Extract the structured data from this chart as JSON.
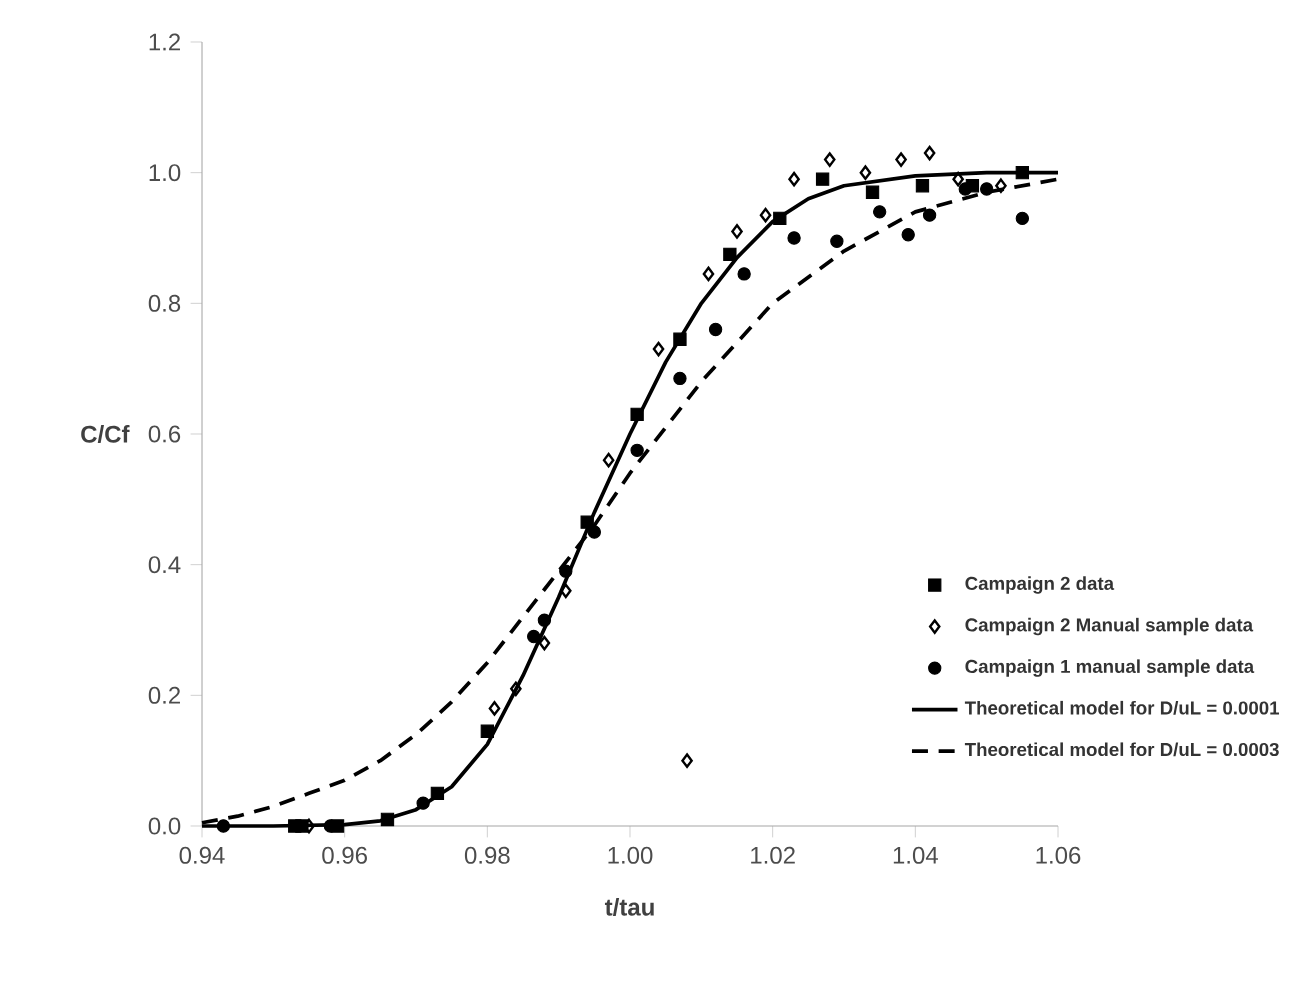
{
  "chart_data": {
    "type": "scatter",
    "xlabel": "t/tau",
    "ylabel": "C/Cf",
    "xlim": [
      0.94,
      1.06
    ],
    "ylim": [
      0,
      1.2
    ],
    "xticks": [
      {
        "value": 0.94,
        "label": "0.94"
      },
      {
        "value": 0.96,
        "label": "0.96"
      },
      {
        "value": 0.98,
        "label": "0.98"
      },
      {
        "value": 1.0,
        "label": "1.00"
      },
      {
        "value": 1.02,
        "label": "1.02"
      },
      {
        "value": 1.04,
        "label": "1.04"
      },
      {
        "value": 1.06,
        "label": "1.06"
      }
    ],
    "yticks": [
      {
        "value": 0,
        "label": "0.0"
      },
      {
        "value": 0.2,
        "label": "0.2"
      },
      {
        "value": 0.4,
        "label": "0.4"
      },
      {
        "value": 0.6,
        "label": "0.6"
      },
      {
        "value": 0.8,
        "label": "0.8"
      },
      {
        "value": 1.0,
        "label": "1.0"
      },
      {
        "value": 1.2,
        "label": "1.2"
      }
    ],
    "grid": false,
    "legend": "right",
    "series": [
      {
        "name": "Campaign 2 data",
        "marker": "square",
        "color": "#000000",
        "x": [
          0.953,
          0.954,
          0.959,
          0.966,
          0.973,
          0.98,
          0.994,
          1.001,
          1.007,
          1.014,
          1.021,
          1.027,
          1.034,
          1.041,
          1.048,
          1.055
        ],
        "values": [
          0,
          0,
          0,
          0.01,
          0.05,
          0.145,
          0.465,
          0.63,
          0.745,
          0.875,
          0.93,
          0.99,
          0.97,
          0.98,
          0.98,
          1.0
        ]
      },
      {
        "name": "Campaign 2 Manual sample data",
        "marker": "diamond",
        "color": "#000000",
        "x": [
          0.955,
          0.981,
          0.984,
          0.988,
          0.991,
          0.997,
          1.004,
          1.008,
          1.011,
          1.015,
          1.019,
          1.023,
          1.028,
          1.033,
          1.038,
          1.042,
          1.046,
          1.052
        ],
        "values": [
          0,
          0.18,
          0.21,
          0.28,
          0.36,
          0.56,
          0.73,
          0.1,
          0.845,
          0.91,
          0.935,
          0.99,
          1.02,
          1.0,
          1.02,
          1.03,
          0.99,
          0.98
        ]
      },
      {
        "name": "Campaign 1 manual sample data",
        "marker": "circle",
        "color": "#000000",
        "x": [
          0.943,
          0.958,
          0.971,
          0.9865,
          0.988,
          0.991,
          0.995,
          1.001,
          1.007,
          1.012,
          1.016,
          1.023,
          1.029,
          1.035,
          1.039,
          1.042,
          1.047,
          1.05,
          1.055
        ],
        "values": [
          0,
          0,
          0.035,
          0.29,
          0.315,
          0.39,
          0.45,
          0.575,
          0.685,
          0.76,
          0.845,
          0.9,
          0.895,
          0.94,
          0.905,
          0.935,
          0.975,
          0.975,
          0.93
        ]
      },
      {
        "name": "Theoretical model for D/uL = 0.0001",
        "type": "line",
        "marker": "none",
        "line_style": "solid",
        "color": "#000000",
        "x": [
          0.94,
          0.95,
          0.96,
          0.965,
          0.97,
          0.975,
          0.98,
          0.985,
          0.99,
          0.995,
          1.0,
          1.005,
          1.01,
          1.015,
          1.02,
          1.025,
          1.03,
          1.04,
          1.05,
          1.06
        ],
        "values": [
          0,
          0,
          0.002,
          0.008,
          0.025,
          0.06,
          0.125,
          0.23,
          0.35,
          0.48,
          0.6,
          0.71,
          0.8,
          0.87,
          0.925,
          0.96,
          0.98,
          0.995,
          1.0,
          1.0
        ]
      },
      {
        "name": "Theoretical model for D/uL = 0.0003",
        "type": "line",
        "marker": "none",
        "line_style": "dashed",
        "color": "#000000",
        "x": [
          0.94,
          0.945,
          0.95,
          0.955,
          0.96,
          0.965,
          0.97,
          0.975,
          0.98,
          0.985,
          0.99,
          0.995,
          1.0,
          1.005,
          1.01,
          1.015,
          1.02,
          1.03,
          1.04,
          1.05,
          1.06
        ],
        "values": [
          0.005,
          0.015,
          0.03,
          0.05,
          0.07,
          0.1,
          0.14,
          0.19,
          0.25,
          0.32,
          0.39,
          0.46,
          0.54,
          0.61,
          0.68,
          0.74,
          0.8,
          0.88,
          0.94,
          0.97,
          0.99
        ]
      }
    ]
  }
}
